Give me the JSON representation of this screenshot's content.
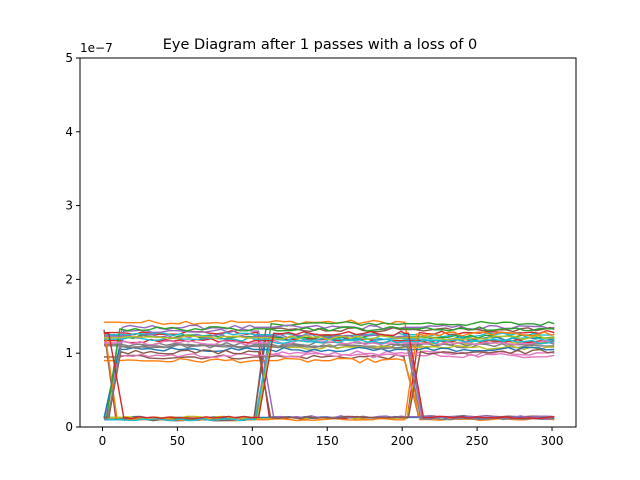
{
  "chart_data": {
    "type": "line",
    "title": "Eye Diagram after 1 passes with a loss of 0",
    "xlabel": "",
    "ylabel": "",
    "xlim": [
      -15,
      316
    ],
    "ylim": [
      0,
      5e-07
    ],
    "x_ticks": [
      0,
      50,
      100,
      150,
      200,
      250,
      300
    ],
    "x_tick_labels": [
      "0",
      "50",
      "100",
      "150",
      "200",
      "250",
      "300"
    ],
    "y_ticks": [
      0,
      1e-07,
      2e-07,
      3e-07,
      4e-07,
      5e-07
    ],
    "y_tick_labels": [
      "0",
      "1",
      "2",
      "3",
      "4",
      "5"
    ],
    "y_offset_label": "1e−7",
    "grid": false,
    "legend": "none",
    "eye": {
      "segment_boundaries": [
        0,
        100,
        200,
        300
      ],
      "transition_width": 10,
      "low_level_center": 1.1e-08,
      "high_level_range": [
        9e-08,
        1.45e-07
      ]
    },
    "series": [
      {
        "color": "#1f77b4",
        "bits": [
          0,
          1,
          1
        ],
        "high_level": 1.2e-07,
        "low_level": 1e-08
      },
      {
        "color": "#ff7f0e",
        "bits": [
          1,
          1,
          0
        ],
        "high_level": 1.42e-07,
        "low_level": 1.3e-08
      },
      {
        "color": "#2ca02c",
        "bits": [
          0,
          1,
          1
        ],
        "high_level": 1.4e-07,
        "low_level": 1.1e-08
      },
      {
        "color": "#d62728",
        "bits": [
          1,
          0,
          1
        ],
        "high_level": 1.28e-07,
        "low_level": 1.2e-08
      },
      {
        "color": "#9467bd",
        "bits": [
          1,
          1,
          1
        ],
        "high_level": 1.35e-07,
        "low_level": 1e-08
      },
      {
        "color": "#8c564b",
        "bits": [
          1,
          1,
          0
        ],
        "high_level": 9.5e-08,
        "low_level": 1.4e-08
      },
      {
        "color": "#e377c2",
        "bits": [
          0,
          1,
          1
        ],
        "high_level": 1e-07,
        "low_level": 1.1e-08
      },
      {
        "color": "#7f7f7f",
        "bits": [
          1,
          1,
          1
        ],
        "high_level": 1.1e-07,
        "low_level": 1e-08
      },
      {
        "color": "#bcbd22",
        "bits": [
          0,
          0,
          1
        ],
        "high_level": 1.15e-07,
        "low_level": 1.2e-08
      },
      {
        "color": "#17becf",
        "bits": [
          1,
          1,
          1
        ],
        "high_level": 1.25e-07,
        "low_level": 1.1e-08
      },
      {
        "color": "#1f77b4",
        "bits": [
          0,
          0,
          0
        ],
        "high_level": 1.18e-07,
        "low_level": 1.3e-08
      },
      {
        "color": "#ff7f0e",
        "bits": [
          1,
          1,
          0
        ],
        "high_level": 9e-08,
        "low_level": 1e-08
      },
      {
        "color": "#2ca02c",
        "bits": [
          1,
          1,
          1
        ],
        "high_level": 1.22e-07,
        "low_level": 1.2e-08
      },
      {
        "color": "#d62728",
        "bits": [
          1,
          1,
          1
        ],
        "high_level": 1.17e-07,
        "low_level": 1.1e-08
      },
      {
        "color": "#9467bd",
        "bits": [
          1,
          0,
          0
        ],
        "high_level": 1.3e-07,
        "low_level": 1.4e-08
      },
      {
        "color": "#8c564b",
        "bits": [
          0,
          1,
          1
        ],
        "high_level": 1.32e-07,
        "low_level": 1e-08
      },
      {
        "color": "#e377c2",
        "bits": [
          1,
          1,
          1
        ],
        "high_level": 9.7e-08,
        "low_level": 1.2e-08
      },
      {
        "color": "#7f7f7f",
        "bits": [
          1,
          1,
          1
        ],
        "high_level": 1.12e-07,
        "low_level": 1.1e-08
      },
      {
        "color": "#bcbd22",
        "bits": [
          0,
          1,
          1
        ],
        "high_level": 1.08e-07,
        "low_level": 1.3e-08
      },
      {
        "color": "#17becf",
        "bits": [
          1,
          1,
          1
        ],
        "high_level": 1.19e-07,
        "low_level": 1.1e-08
      },
      {
        "color": "#1f77b4",
        "bits": [
          1,
          1,
          1
        ],
        "high_level": 1.05e-07,
        "low_level": 1.2e-08
      },
      {
        "color": "#ff7f0e",
        "bits": [
          0,
          0,
          1
        ],
        "high_level": 1.26e-07,
        "low_level": 1e-08
      },
      {
        "color": "#2ca02c",
        "bits": [
          1,
          1,
          1
        ],
        "high_level": 1.33e-07,
        "low_level": 1.1e-08
      },
      {
        "color": "#9467bd",
        "bits": [
          1,
          1,
          0
        ],
        "high_level": 1.23e-07,
        "low_level": 1.2e-08
      },
      {
        "color": "#8c564b",
        "bits": [
          1,
          0,
          1
        ],
        "high_level": 1.02e-07,
        "low_level": 1.3e-08
      },
      {
        "color": "#e377c2",
        "bits": [
          1,
          1,
          1
        ],
        "high_level": 1.14e-07,
        "low_level": 1.1e-08
      },
      {
        "color": "#17becf",
        "bits": [
          0,
          1,
          1
        ],
        "high_level": 1.16e-07,
        "low_level": 1e-08
      },
      {
        "color": "#bcbd22",
        "bits": [
          1,
          1,
          1
        ],
        "high_level": 1.21e-07,
        "low_level": 1.2e-08
      },
      {
        "color": "#7f7f7f",
        "bits": [
          1,
          1,
          0
        ],
        "high_level": 1.09e-07,
        "low_level": 1.1e-08
      },
      {
        "color": "#d62728",
        "bits": [
          0,
          1,
          0
        ],
        "high_level": 1.27e-07,
        "low_level": 1.3e-08
      }
    ]
  }
}
